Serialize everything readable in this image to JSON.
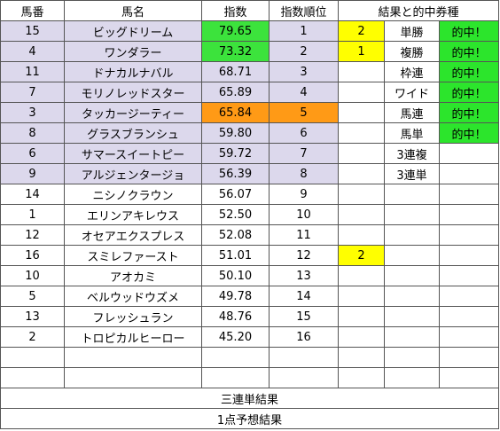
{
  "header": {
    "horse_number": "馬番",
    "horse_name": "馬名",
    "index": "指数",
    "index_rank": "指数順位",
    "results_title": "結果と的中券種"
  },
  "rows": [
    {
      "no": "15",
      "name": "ビッグドリーム",
      "index": "79.65",
      "rank": "1",
      "result": "2",
      "bet": "単勝",
      "hit": "的中！"
    },
    {
      "no": "4",
      "name": "ワンダラー",
      "index": "73.32",
      "rank": "2",
      "result": "1",
      "bet": "複勝",
      "hit": "的中！"
    },
    {
      "no": "11",
      "name": "ドナカルナバル",
      "index": "68.71",
      "rank": "3",
      "result": "",
      "bet": "枠連",
      "hit": "的中！"
    },
    {
      "no": "7",
      "name": "モリノレッドスター",
      "index": "65.89",
      "rank": "4",
      "result": "",
      "bet": "ワイド",
      "hit": "的中！"
    },
    {
      "no": "3",
      "name": "タッカージーティー",
      "index": "65.84",
      "rank": "5",
      "result": "",
      "bet": "馬連",
      "hit": "的中！"
    },
    {
      "no": "8",
      "name": "グラスブランシュ",
      "index": "59.80",
      "rank": "6",
      "result": "",
      "bet": "馬単",
      "hit": "的中！"
    },
    {
      "no": "6",
      "name": "サマースイートピー",
      "index": "59.72",
      "rank": "7",
      "result": "",
      "bet": "3連複",
      "hit": ""
    },
    {
      "no": "9",
      "name": "アルジェンタージョ",
      "index": "56.39",
      "rank": "8",
      "result": "",
      "bet": "3連単",
      "hit": ""
    },
    {
      "no": "14",
      "name": "ニシノクラウン",
      "index": "56.07",
      "rank": "9",
      "result": "",
      "bet": "",
      "hit": ""
    },
    {
      "no": "1",
      "name": "エリンアキレウス",
      "index": "52.50",
      "rank": "10",
      "result": "",
      "bet": "",
      "hit": ""
    },
    {
      "no": "12",
      "name": "オセアエクスプレス",
      "index": "52.08",
      "rank": "11",
      "result": "",
      "bet": "",
      "hit": ""
    },
    {
      "no": "16",
      "name": "スミレファースト",
      "index": "51.01",
      "rank": "12",
      "result": "2",
      "bet": "",
      "hit": ""
    },
    {
      "no": "10",
      "name": "アオカミ",
      "index": "50.10",
      "rank": "13",
      "result": "",
      "bet": "",
      "hit": ""
    },
    {
      "no": "5",
      "name": "ベルウッドウズメ",
      "index": "49.78",
      "rank": "14",
      "result": "",
      "bet": "",
      "hit": ""
    },
    {
      "no": "13",
      "name": "フレッシュラン",
      "index": "48.76",
      "rank": "15",
      "result": "",
      "bet": "",
      "hit": ""
    },
    {
      "no": "2",
      "name": "トロピカルヒーロー",
      "index": "45.20",
      "rank": "16",
      "result": "",
      "bet": "",
      "hit": ""
    },
    {
      "no": "",
      "name": "",
      "index": "",
      "rank": "",
      "result": "",
      "bet": "",
      "hit": ""
    },
    {
      "no": "",
      "name": "",
      "index": "",
      "rank": "",
      "result": "",
      "bet": "",
      "hit": ""
    }
  ],
  "footer": {
    "trifecta_result": "三連単結果",
    "one_point_prediction": "1点予想結果"
  },
  "colors": {
    "header_lavender": "#dcd8ec",
    "top_index_green": "#3ce33c",
    "highlight_orange": "#ff9a16",
    "result_yellow": "#ffff00",
    "hit_green": "#2ce52c"
  }
}
